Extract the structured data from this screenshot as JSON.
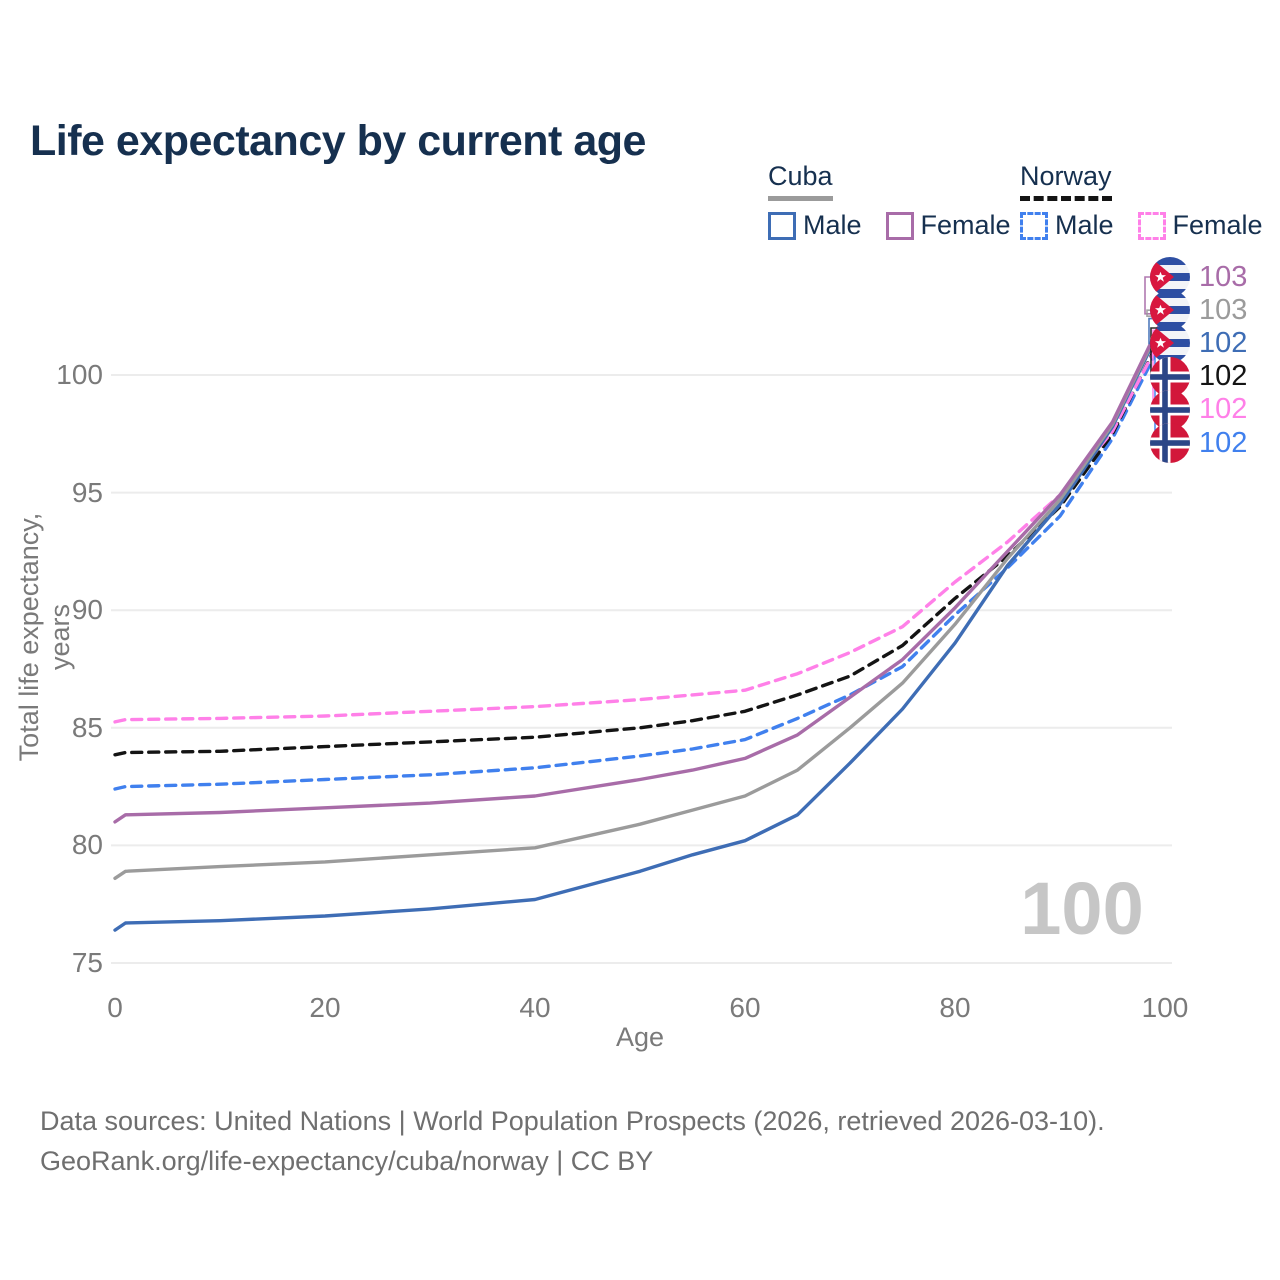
{
  "title": "Life expectancy by current age",
  "legend": {
    "groups": [
      {
        "label": "Cuba",
        "line_style": "solid",
        "swatch_color": "#9b9b9b",
        "items": [
          {
            "label": "Male",
            "color": "#3e6db5",
            "line_style": "solid"
          },
          {
            "label": "Female",
            "color": "#a86ca8",
            "line_style": "solid"
          }
        ]
      },
      {
        "label": "Norway",
        "line_style": "dashed",
        "swatch_color": "#141414",
        "items": [
          {
            "label": "Male",
            "color": "#4080ee",
            "line_style": "dashed"
          },
          {
            "label": "Female",
            "color": "#ff80e8",
            "line_style": "dashed"
          }
        ]
      }
    ]
  },
  "chart_data": {
    "type": "line",
    "title": "Life expectancy by current age",
    "xlabel": "Age",
    "ylabel": "Total life expectancy, years",
    "xlim": [
      0,
      100
    ],
    "ylim": [
      75,
      103
    ],
    "x_ticks": [
      0,
      20,
      40,
      60,
      80,
      100
    ],
    "y_ticks": [
      75,
      80,
      85,
      90,
      95,
      100
    ],
    "grid": "horizontal-only",
    "legend_position": "top-right",
    "x": [
      0,
      1,
      10,
      20,
      30,
      40,
      50,
      55,
      60,
      65,
      70,
      75,
      80,
      85,
      90,
      95,
      100
    ],
    "series": [
      {
        "name": "Norway Male",
        "country": "Norway",
        "sex": "Male",
        "line_style": "dashed",
        "color": "#4080ee",
        "flag": "norway",
        "end_label": "102",
        "values": [
          82.4,
          82.5,
          82.6,
          82.8,
          83.0,
          83.3,
          83.8,
          84.1,
          84.5,
          85.4,
          86.4,
          87.6,
          89.8,
          91.8,
          94.0,
          97.3,
          101.7
        ]
      },
      {
        "name": "Norway",
        "country": "Norway",
        "sex": "All",
        "line_style": "dashed",
        "color": "#141414",
        "flag": "norway",
        "end_label": "102",
        "values": [
          83.85,
          83.95,
          84.0,
          84.2,
          84.4,
          84.6,
          85.0,
          85.3,
          85.7,
          86.4,
          87.2,
          88.5,
          90.5,
          92.3,
          94.4,
          97.5,
          102.0
        ]
      },
      {
        "name": "Norway Female",
        "country": "Norway",
        "sex": "Female",
        "line_style": "dashed",
        "color": "#ff80e8",
        "flag": "norway",
        "end_label": "102",
        "values": [
          85.25,
          85.35,
          85.4,
          85.5,
          85.7,
          85.9,
          86.2,
          86.4,
          86.6,
          87.3,
          88.2,
          89.3,
          91.2,
          92.9,
          94.9,
          97.6,
          101.9
        ]
      },
      {
        "name": "Cuba Male",
        "country": "Cuba",
        "sex": "Male",
        "line_style": "solid",
        "color": "#3e6db5",
        "flag": "cuba",
        "end_label": "102",
        "values": [
          76.4,
          76.7,
          76.8,
          77.0,
          77.3,
          77.7,
          78.9,
          79.6,
          80.2,
          81.3,
          83.5,
          85.8,
          88.6,
          91.9,
          94.5,
          97.8,
          102.4
        ]
      },
      {
        "name": "Cuba",
        "country": "Cuba",
        "sex": "All",
        "line_style": "solid",
        "color": "#9b9b9b",
        "flag": "cuba",
        "end_label": "103",
        "values": [
          78.6,
          78.9,
          79.1,
          79.3,
          79.6,
          79.9,
          80.9,
          81.5,
          82.1,
          83.2,
          85.0,
          86.9,
          89.4,
          92.2,
          94.7,
          97.9,
          102.5
        ]
      },
      {
        "name": "Cuba Female",
        "country": "Cuba",
        "sex": "Female",
        "line_style": "solid",
        "color": "#a86ca8",
        "flag": "cuba",
        "end_label": "103",
        "values": [
          81.0,
          81.3,
          81.4,
          81.6,
          81.8,
          82.1,
          82.8,
          83.2,
          83.7,
          84.7,
          86.3,
          87.9,
          90.1,
          92.5,
          94.9,
          98.0,
          102.6
        ]
      }
    ],
    "annotation_age_counter": "100"
  },
  "watermark": "100",
  "colors": {
    "title_text": "#16304f",
    "axis_text": "#7a7a7a",
    "gridline": "#ececec",
    "watermark": "#c6c6c6",
    "source_text": "#6f6f6f",
    "cuba_flag_blue": "#2e4fa3",
    "cuba_flag_red": "#d8173f",
    "norway_flag_red": "#d2173a",
    "norway_flag_blue": "#2b4687"
  },
  "source": {
    "line1": "Data sources: United Nations | World Population Prospects (2026, retrieved 2026-03-10).",
    "line2": "GeoRank.org/life-expectancy/cuba/norway | CC BY"
  }
}
